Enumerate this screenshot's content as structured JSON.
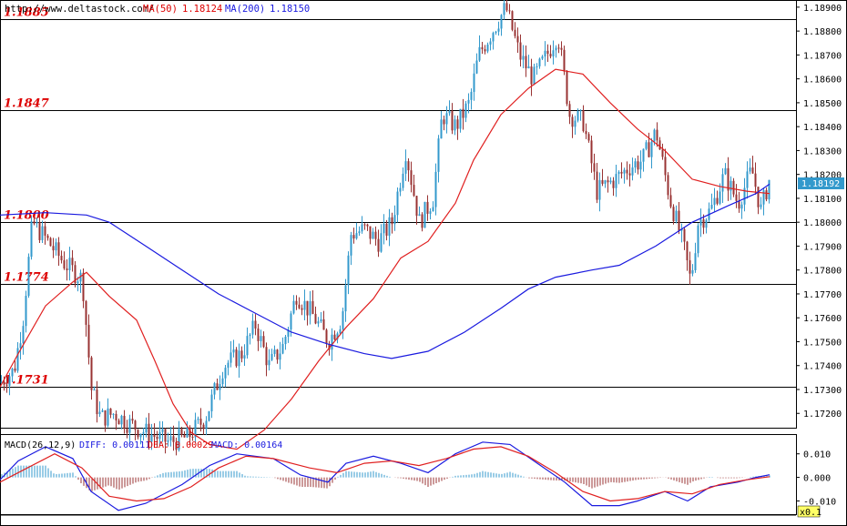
{
  "header": {
    "url": "http://www.deltastock.com/",
    "ma50_label": "MA(50)",
    "ma50_value": "1.18124",
    "ma200_label": "MA(200)",
    "ma200_value": "1.18150"
  },
  "colors": {
    "up": "#3399cc",
    "down": "#993333",
    "ma50": "#e02020",
    "ma200": "#1a1adf",
    "level_line": "#000000",
    "level_text": "#dd0000",
    "macd_hist_pos": "#3399cc",
    "macd_hist_neg": "#993333",
    "price_tag_bg": "#3399cc"
  },
  "price_axis": {
    "ticks": [
      "1.18900",
      "1.18800",
      "1.18700",
      "1.18600",
      "1.18500",
      "1.18400",
      "1.18300",
      "1.18200",
      "1.18100",
      "1.18000",
      "1.17900",
      "1.17800",
      "1.17700",
      "1.17600",
      "1.17500",
      "1.17400",
      "1.17300",
      "1.17200"
    ],
    "current_price": "1.18192"
  },
  "levels": [
    {
      "label": "1.1885",
      "value": 1.1885
    },
    {
      "label": "1.1847",
      "value": 1.1847
    },
    {
      "label": "1.1800",
      "value": 1.18
    },
    {
      "label": "1.1774",
      "value": 1.1774
    },
    {
      "label": "1.1731",
      "value": 1.1731
    }
  ],
  "macd_panel": {
    "title": "MACD(26,12,9)",
    "diff_label": "DIFF: 0.00111",
    "dea_label": "DEA: 0.00029",
    "macd_label": "MACD: 0.00164",
    "ticks": [
      "0.010",
      "0.000",
      "-0.010"
    ],
    "scale_badge": "x0.1"
  },
  "chart_data": {
    "type": "line",
    "xlabel": "",
    "ylabel": "",
    "ylim": [
      1.1714,
      1.1893
    ],
    "grid": false,
    "series": [
      {
        "name": "MA(50)",
        "points": [
          [
            0,
            1.1731
          ],
          [
            20,
            1.1745
          ],
          [
            50,
            1.1765
          ],
          [
            80,
            1.1775
          ],
          [
            95,
            1.1779
          ],
          [
            120,
            1.1769
          ],
          [
            150,
            1.1759
          ],
          [
            170,
            1.1742
          ],
          [
            190,
            1.1724
          ],
          [
            210,
            1.1712
          ],
          [
            230,
            1.1707
          ],
          [
            260,
            1.1705
          ],
          [
            290,
            1.1713
          ],
          [
            320,
            1.1726
          ],
          [
            350,
            1.1742
          ],
          [
            380,
            1.1756
          ],
          [
            410,
            1.1768
          ],
          [
            440,
            1.1785
          ],
          [
            470,
            1.1792
          ],
          [
            500,
            1.1808
          ],
          [
            520,
            1.1826
          ],
          [
            550,
            1.1845
          ],
          [
            580,
            1.1856
          ],
          [
            610,
            1.1864
          ],
          [
            640,
            1.1862
          ],
          [
            670,
            1.185
          ],
          [
            700,
            1.1839
          ],
          [
            730,
            1.183
          ],
          [
            760,
            1.1818
          ],
          [
            790,
            1.1815
          ],
          [
            820,
            1.1813
          ],
          [
            845,
            1.1812
          ]
        ]
      },
      {
        "name": "MA(200)",
        "points": [
          [
            0,
            1.1803
          ],
          [
            50,
            1.1804
          ],
          [
            95,
            1.1803
          ],
          [
            120,
            1.18
          ],
          [
            160,
            1.179
          ],
          [
            200,
            1.178
          ],
          [
            240,
            1.177
          ],
          [
            280,
            1.1762
          ],
          [
            320,
            1.1754
          ],
          [
            360,
            1.1749
          ],
          [
            400,
            1.1745
          ],
          [
            430,
            1.1743
          ],
          [
            470,
            1.1746
          ],
          [
            510,
            1.1754
          ],
          [
            550,
            1.1764
          ],
          [
            580,
            1.1772
          ],
          [
            610,
            1.1777
          ],
          [
            650,
            1.178
          ],
          [
            680,
            1.1782
          ],
          [
            720,
            1.179
          ],
          [
            760,
            1.18
          ],
          [
            800,
            1.1807
          ],
          [
            830,
            1.1812
          ],
          [
            845,
            1.1816
          ]
        ]
      }
    ],
    "price_path": [
      [
        0,
        1.1733
      ],
      [
        15,
        1.1738
      ],
      [
        25,
        1.176
      ],
      [
        35,
        1.18
      ],
      [
        50,
        1.1793
      ],
      [
        70,
        1.1783
      ],
      [
        90,
        1.1776
      ],
      [
        100,
        1.173
      ],
      [
        110,
        1.1718
      ],
      [
        125,
        1.172
      ],
      [
        140,
        1.1716
      ],
      [
        160,
        1.1712
      ],
      [
        185,
        1.1708
      ],
      [
        205,
        1.171
      ],
      [
        225,
        1.1718
      ],
      [
        245,
        1.174
      ],
      [
        265,
        1.1745
      ],
      [
        280,
        1.1757
      ],
      [
        295,
        1.174
      ],
      [
        310,
        1.1748
      ],
      [
        325,
        1.177
      ],
      [
        345,
        1.176
      ],
      [
        360,
        1.175
      ],
      [
        375,
        1.176
      ],
      [
        385,
        1.1795
      ],
      [
        400,
        1.1797
      ],
      [
        415,
        1.1792
      ],
      [
        430,
        1.18
      ],
      [
        445,
        1.183
      ],
      [
        460,
        1.18
      ],
      [
        475,
        1.181
      ],
      [
        485,
        1.1845
      ],
      [
        500,
        1.184
      ],
      [
        515,
        1.185
      ],
      [
        525,
        1.187
      ],
      [
        540,
        1.188
      ],
      [
        555,
        1.189
      ],
      [
        570,
        1.187
      ],
      [
        585,
        1.186
      ],
      [
        600,
        1.187
      ],
      [
        612,
        1.1879
      ],
      [
        625,
        1.1845
      ],
      [
        640,
        1.1842
      ],
      [
        655,
        1.1813
      ],
      [
        675,
        1.1818
      ],
      [
        690,
        1.1823
      ],
      [
        705,
        1.1826
      ],
      [
        720,
        1.1838
      ],
      [
        735,
        1.181
      ],
      [
        750,
        1.179
      ],
      [
        758,
        1.1775
      ],
      [
        766,
        1.18
      ],
      [
        780,
        1.1805
      ],
      [
        795,
        1.182
      ],
      [
        810,
        1.1808
      ],
      [
        825,
        1.1822
      ],
      [
        835,
        1.1805
      ],
      [
        845,
        1.1819
      ]
    ],
    "macd": {
      "diff": [
        [
          0,
          -0.001
        ],
        [
          20,
          0.007
        ],
        [
          50,
          0.013
        ],
        [
          80,
          0.008
        ],
        [
          100,
          -0.006
        ],
        [
          130,
          -0.014
        ],
        [
          160,
          -0.011
        ],
        [
          200,
          -0.003
        ],
        [
          230,
          0.005
        ],
        [
          260,
          0.01
        ],
        [
          300,
          0.008
        ],
        [
          330,
          0.001
        ],
        [
          360,
          -0.002
        ],
        [
          380,
          0.006
        ],
        [
          410,
          0.009
        ],
        [
          440,
          0.006
        ],
        [
          470,
          0.002
        ],
        [
          500,
          0.01
        ],
        [
          530,
          0.015
        ],
        [
          560,
          0.014
        ],
        [
          590,
          0.006
        ],
        [
          620,
          -0.002
        ],
        [
          650,
          -0.012
        ],
        [
          680,
          -0.012
        ],
        [
          700,
          -0.01
        ],
        [
          730,
          -0.006
        ],
        [
          755,
          -0.01
        ],
        [
          780,
          -0.004
        ],
        [
          810,
          -0.002
        ],
        [
          830,
          0.0
        ],
        [
          845,
          0.0011
        ]
      ],
      "dea": [
        [
          0,
          -0.002
        ],
        [
          30,
          0.004
        ],
        [
          60,
          0.01
        ],
        [
          90,
          0.004
        ],
        [
          120,
          -0.008
        ],
        [
          150,
          -0.01
        ],
        [
          180,
          -0.009
        ],
        [
          210,
          -0.004
        ],
        [
          240,
          0.004
        ],
        [
          270,
          0.009
        ],
        [
          300,
          0.008
        ],
        [
          340,
          0.004
        ],
        [
          370,
          0.002
        ],
        [
          400,
          0.006
        ],
        [
          430,
          0.007
        ],
        [
          460,
          0.005
        ],
        [
          490,
          0.008
        ],
        [
          520,
          0.012
        ],
        [
          550,
          0.013
        ],
        [
          580,
          0.009
        ],
        [
          610,
          0.002
        ],
        [
          640,
          -0.006
        ],
        [
          670,
          -0.01
        ],
        [
          700,
          -0.009
        ],
        [
          730,
          -0.006
        ],
        [
          760,
          -0.007
        ],
        [
          790,
          -0.003
        ],
        [
          820,
          -0.001
        ],
        [
          845,
          0.0003
        ]
      ]
    }
  }
}
